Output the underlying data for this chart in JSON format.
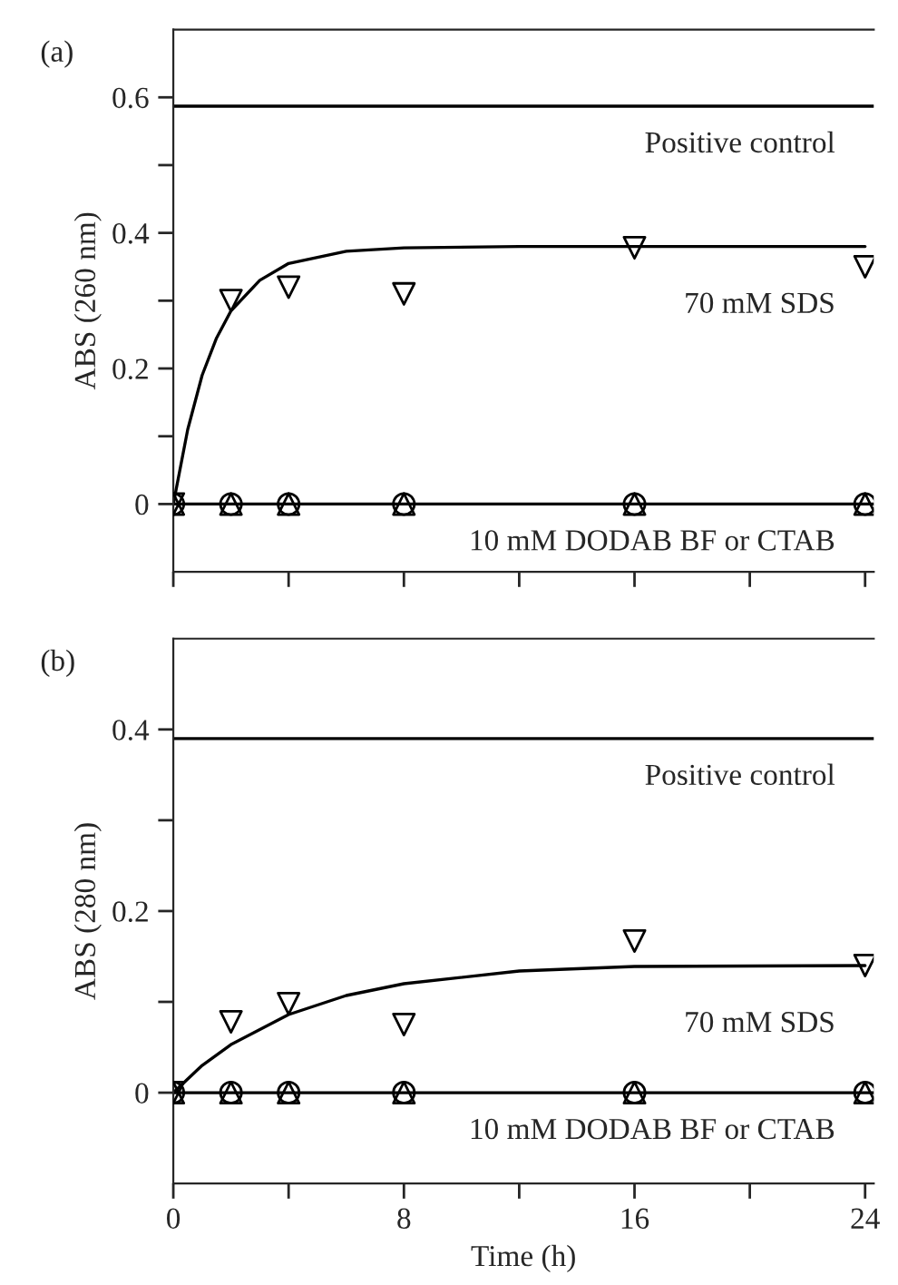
{
  "chart_data": [
    {
      "type": "scatter",
      "title": "(a)",
      "ylabel": "ABS (260 nm)",
      "xlim": [
        0,
        24.3
      ],
      "ylim": [
        -0.1,
        0.7
      ],
      "xticks": [
        {
          "value": 0,
          "label": null
        },
        {
          "value": 4,
          "label": null
        },
        {
          "value": 8,
          "label": null
        },
        {
          "value": 12,
          "label": null
        },
        {
          "value": 16,
          "label": null
        },
        {
          "value": 20,
          "label": null
        },
        {
          "value": 24,
          "label": null
        }
      ],
      "yticks": [
        0,
        {
          "value": 0.1,
          "label": null
        },
        0.2,
        {
          "value": 0.3,
          "label": null
        },
        0.4,
        {
          "value": 0.5,
          "label": null
        },
        0.6
      ],
      "tick_labels": "y",
      "grid": false,
      "legend": false,
      "series": [
        {
          "type": "line",
          "color": "#000000",
          "marker": "none",
          "line_style": "solid",
          "x": [
            0,
            0.5,
            1,
            1.5,
            2,
            3,
            4,
            6,
            8,
            12,
            24
          ],
          "values": [
            0,
            0.11,
            0.19,
            0.245,
            0.285,
            0.33,
            0.355,
            0.373,
            0.378,
            0.38,
            0.38
          ]
        },
        {
          "color": "#000000",
          "marker": "triangle_down",
          "x": [
            0,
            2,
            4,
            8,
            16,
            24
          ],
          "values": [
            0,
            0.3,
            0.32,
            0.31,
            0.378,
            0.35
          ]
        },
        {
          "color": "#000000",
          "marker": "triangle",
          "x": [
            0,
            2,
            4,
            8,
            16,
            24
          ],
          "values": [
            0,
            0,
            0,
            0,
            0,
            0
          ]
        },
        {
          "color": "#000000",
          "marker": "circle",
          "x": [
            0,
            2,
            4,
            8,
            16,
            24
          ],
          "values": [
            0,
            0,
            0,
            0,
            0,
            0
          ]
        }
      ],
      "ref_lines": [
        {
          "axis": "y",
          "value": 0.587,
          "label": "Positive control"
        },
        {
          "axis": "y",
          "value": 0,
          "label": "10 mM DODAB BF or CTAB"
        }
      ],
      "annotations": [
        "70 mM SDS"
      ]
    },
    {
      "type": "scatter",
      "title": "(b)",
      "xlabel": "Time (h)",
      "ylabel": "ABS (280 nm)",
      "xlim": [
        0,
        24.3
      ],
      "ylim": [
        -0.1,
        0.5
      ],
      "xticks": [
        0,
        {
          "value": 4,
          "label": null
        },
        8,
        {
          "value": 12,
          "label": null
        },
        16,
        {
          "value": 20,
          "label": null
        },
        24
      ],
      "yticks": [
        0,
        {
          "value": 0.1,
          "label": null
        },
        0.2,
        {
          "value": 0.3,
          "label": null
        },
        0.4
      ],
      "grid": false,
      "legend": false,
      "series": [
        {
          "type": "line",
          "color": "#000000",
          "marker": "none",
          "line_style": "solid",
          "x": [
            0,
            1,
            2,
            4,
            6,
            8,
            12,
            16,
            24
          ],
          "values": [
            0,
            0.03,
            0.053,
            0.086,
            0.107,
            0.12,
            0.134,
            0.139,
            0.14
          ]
        },
        {
          "color": "#000000",
          "marker": "triangle_down",
          "x": [
            0,
            2,
            4,
            8,
            16,
            24
          ],
          "values": [
            0,
            0.078,
            0.098,
            0.075,
            0.167,
            0.14
          ]
        },
        {
          "color": "#000000",
          "marker": "triangle",
          "x": [
            0,
            2,
            4,
            8,
            16,
            24
          ],
          "values": [
            0,
            0,
            0,
            0,
            0,
            0
          ]
        },
        {
          "color": "#000000",
          "marker": "circle",
          "x": [
            0,
            2,
            4,
            8,
            16,
            24
          ],
          "values": [
            0,
            0,
            0,
            0,
            0,
            0
          ]
        }
      ],
      "ref_lines": [
        {
          "axis": "y",
          "value": 0.39,
          "label": "Positive control"
        },
        {
          "axis": "y",
          "value": 0,
          "label": "10 mM DODAB BF or CTAB"
        }
      ],
      "annotations": [
        "70 mM SDS"
      ]
    }
  ]
}
